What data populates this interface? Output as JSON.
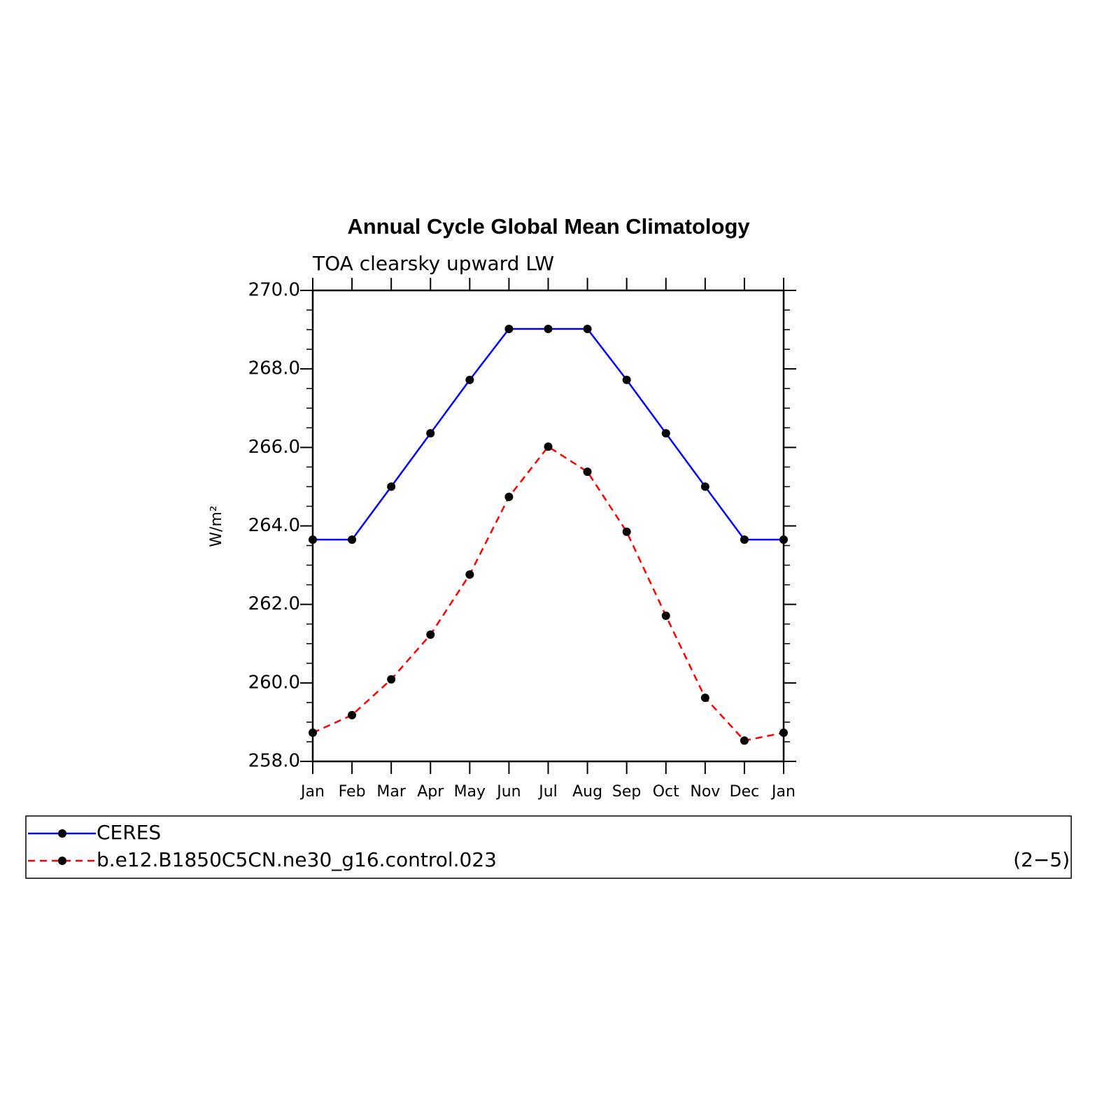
{
  "chart_data": {
    "type": "line",
    "title": "Annual Cycle Global Mean Climatology",
    "subtitle": "TOA clearsky upward LW",
    "y_label": "W/m²",
    "categories": [
      "Jan",
      "Feb",
      "Mar",
      "Apr",
      "May",
      "Jun",
      "Jul",
      "Aug",
      "Sep",
      "Oct",
      "Nov",
      "Dec",
      "Jan"
    ],
    "ylim": [
      258,
      270
    ],
    "yticks": [
      {
        "value": 258,
        "label": "258.0"
      },
      {
        "value": 260,
        "label": "260.0"
      },
      {
        "value": 262,
        "label": "262.0"
      },
      {
        "value": 264,
        "label": "264.0"
      },
      {
        "value": 266,
        "label": "266.0"
      },
      {
        "value": 268,
        "label": "268.0"
      },
      {
        "value": 270,
        "label": "270.0"
      }
    ],
    "series": [
      {
        "name": "CERES",
        "color": "#0000ff",
        "dash": false,
        "values": [
          263.65,
          263.65,
          265.0,
          266.36,
          267.72,
          269.02,
          269.02,
          269.02,
          267.72,
          266.36,
          265.0,
          263.65,
          263.65
        ]
      },
      {
        "name": "b.e12.B1850C5CN.ne30_g16.control.023",
        "color": "#ff0000",
        "dash": true,
        "values": [
          258.73,
          259.18,
          260.09,
          261.23,
          262.76,
          264.74,
          266.02,
          265.38,
          263.85,
          261.71,
          259.62,
          258.53,
          258.73
        ]
      }
    ],
    "panel_label": "(2−5)"
  }
}
